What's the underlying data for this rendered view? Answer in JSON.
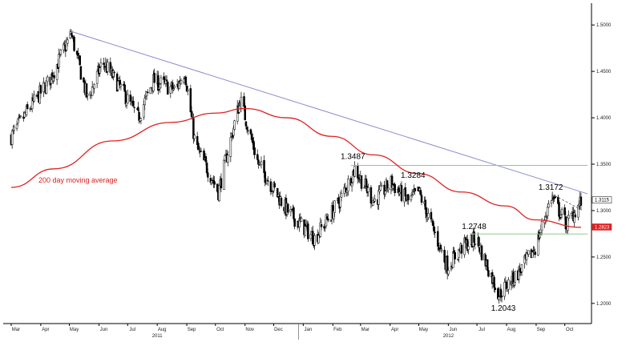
{
  "chart_data": {
    "type": "candlestick",
    "title": "",
    "xlabel": "",
    "ylabel": "",
    "ylim": [
      1.18,
      1.52
    ],
    "y_axis_side": "right",
    "y_ticks": [
      "1.2000",
      "1.2500",
      "1.3000",
      "1.3500",
      "1.4000",
      "1.4500",
      "1.5000"
    ],
    "x_ticks": [
      "Mar",
      "Apr",
      "May",
      "Jun",
      "Jul",
      "Aug",
      "Sep",
      "Oct",
      "Nov",
      "Dec",
      "Jan",
      "Feb",
      "Mar",
      "Apr",
      "May",
      "Jun",
      "Jul",
      "Aug",
      "Sep",
      "Oct"
    ],
    "years": [
      "2011",
      "2012"
    ],
    "grid": false,
    "colors": {
      "up_candle": "#ffffff",
      "down_candle": "#000000",
      "moving_average": "#e02020",
      "trendline": "#8c8ccf",
      "support_resistance": "#8fc98f",
      "price_tag_bg": "#e02020",
      "last_price_bg": "#ffffff"
    },
    "price_path": [
      {
        "date": "2011-03-01",
        "price": 1.38
      },
      {
        "date": "2011-03-20",
        "price": 1.41
      },
      {
        "date": "2011-04-10",
        "price": 1.44
      },
      {
        "date": "2011-05-03",
        "price": 1.49
      },
      {
        "date": "2011-05-20",
        "price": 1.42
      },
      {
        "date": "2011-06-05",
        "price": 1.46
      },
      {
        "date": "2011-06-25",
        "price": 1.43
      },
      {
        "date": "2011-07-12",
        "price": 1.4
      },
      {
        "date": "2011-07-28",
        "price": 1.44
      },
      {
        "date": "2011-08-20",
        "price": 1.43
      },
      {
        "date": "2011-08-30",
        "price": 1.45
      },
      {
        "date": "2011-09-10",
        "price": 1.37
      },
      {
        "date": "2011-09-25",
        "price": 1.34
      },
      {
        "date": "2011-10-04",
        "price": 1.32
      },
      {
        "date": "2011-10-27",
        "price": 1.42
      },
      {
        "date": "2011-11-15",
        "price": 1.35
      },
      {
        "date": "2011-12-15",
        "price": 1.3
      },
      {
        "date": "2012-01-13",
        "price": 1.27
      },
      {
        "date": "2012-02-08",
        "price": 1.31
      },
      {
        "date": "2012-02-24",
        "price": 1.345
      },
      {
        "date": "2012-03-15",
        "price": 1.31
      },
      {
        "date": "2012-04-02",
        "price": 1.33
      },
      {
        "date": "2012-04-20",
        "price": 1.31
      },
      {
        "date": "2012-05-01",
        "price": 1.32
      },
      {
        "date": "2012-05-31",
        "price": 1.24
      },
      {
        "date": "2012-06-15",
        "price": 1.26
      },
      {
        "date": "2012-06-30",
        "price": 1.27
      },
      {
        "date": "2012-07-24",
        "price": 1.21
      },
      {
        "date": "2012-08-15",
        "price": 1.235
      },
      {
        "date": "2012-08-31",
        "price": 1.26
      },
      {
        "date": "2012-09-17",
        "price": 1.315
      },
      {
        "date": "2012-10-03",
        "price": 1.285
      },
      {
        "date": "2012-10-18",
        "price": 1.31
      }
    ],
    "moving_average": {
      "name": "200 day moving average",
      "points": [
        {
          "date": "2011-03-01",
          "value": 1.325
        },
        {
          "date": "2011-04-15",
          "value": 1.345
        },
        {
          "date": "2011-06-15",
          "value": 1.375
        },
        {
          "date": "2011-08-15",
          "value": 1.395
        },
        {
          "date": "2011-10-01",
          "value": 1.405
        },
        {
          "date": "2011-11-01",
          "value": 1.41
        },
        {
          "date": "2011-12-15",
          "value": 1.4
        },
        {
          "date": "2012-01-31",
          "value": 1.38
        },
        {
          "date": "2012-03-15",
          "value": 1.36
        },
        {
          "date": "2012-04-30",
          "value": 1.34
        },
        {
          "date": "2012-06-15",
          "value": 1.32
        },
        {
          "date": "2012-07-31",
          "value": 1.305
        },
        {
          "date": "2012-08-31",
          "value": 1.29
        },
        {
          "date": "2012-10-18",
          "value": 1.282
        }
      ]
    },
    "trendline": {
      "start": {
        "date": "2011-05-03",
        "value": 1.493
      },
      "end": {
        "date": "2012-10-25",
        "value": 1.318
      }
    },
    "horizontal_lines": [
      {
        "value": 1.3487,
        "from": "2012-02-20",
        "to": "2012-10-25"
      },
      {
        "value": 1.2748,
        "from": "2012-06-25",
        "to": "2012-10-25"
      }
    ],
    "annotations": [
      {
        "text": "1.3487",
        "date": "2012-02-22",
        "value": 1.3487
      },
      {
        "text": "1.3284",
        "date": "2012-04-25",
        "value": 1.3284
      },
      {
        "text": "1.2748",
        "date": "2012-06-28",
        "value": 1.2748
      },
      {
        "text": "1.2043",
        "date": "2012-07-27",
        "value": 1.2043
      },
      {
        "text": "1.3172",
        "date": "2012-09-18",
        "value": 1.3172
      }
    ],
    "price_tags": [
      {
        "text": "1.3115",
        "value": 1.3115,
        "style": "last"
      },
      {
        "text": "1.2823",
        "value": 1.2823,
        "style": "ma"
      }
    ]
  }
}
